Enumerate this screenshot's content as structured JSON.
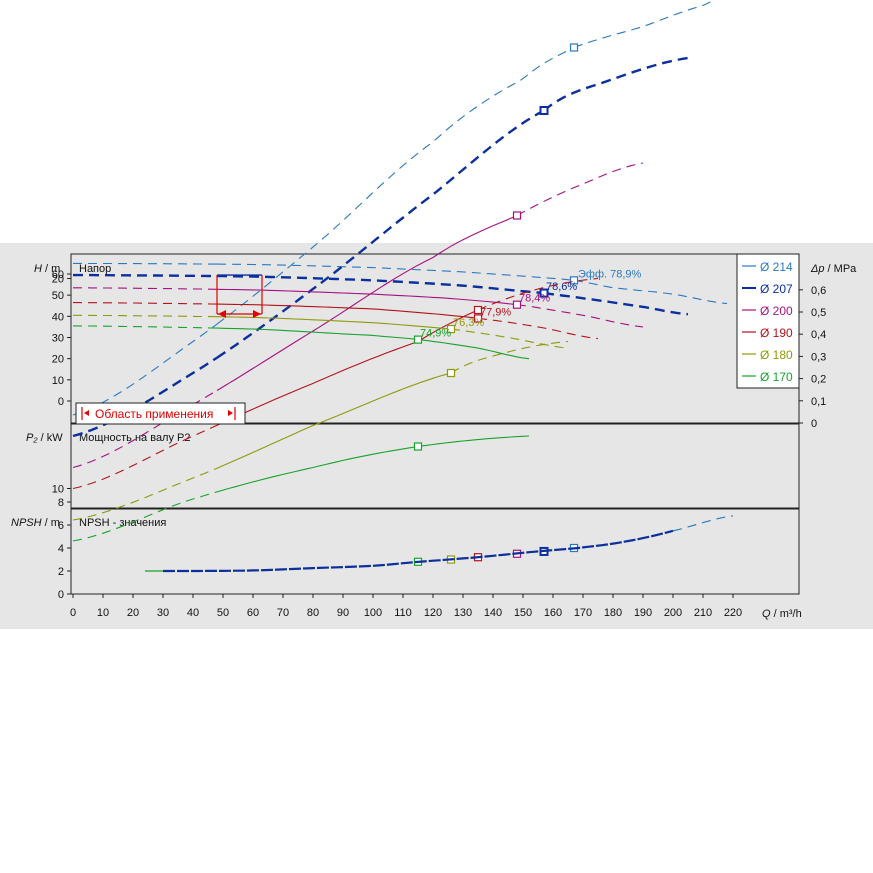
{
  "chart_data": {
    "type": "line",
    "x_axis": {
      "label_var": "Q",
      "label_unit": "m³/h",
      "ticks": [
        0,
        10,
        20,
        30,
        40,
        50,
        60,
        70,
        80,
        90,
        100,
        110,
        120,
        130,
        140,
        150,
        160,
        170,
        180,
        190,
        200,
        210,
        220
      ],
      "range": [
        0,
        242
      ]
    },
    "colors": {
      "background": "#ffffff",
      "panel": "#e6e6e6",
      "grid": "#ffffff",
      "d214": "#2b79c2",
      "d207": "#0b2f9e",
      "d200": "#a8107f",
      "d190": "#b5121b",
      "d180": "#8f9a0a",
      "d170": "#17a32c",
      "range": "#e00000"
    },
    "panels": {
      "head": {
        "title": "Напор",
        "ylabel_var": "H",
        "ylabel_unit": "m",
        "yticks": [
          0,
          10,
          20,
          30,
          40,
          50,
          60
        ],
        "ylim": [
          0,
          66
        ],
        "right_label_var": "Δp",
        "right_label_unit": "MPa",
        "right_ticks": [
          "0",
          "0,1",
          "0,2",
          "0,3",
          "0,4",
          "0,5",
          "0,6"
        ],
        "application_range_label": "Область применения",
        "application_range": [
          48,
          63
        ],
        "application_range_head": 59.5
      },
      "power": {
        "title": "Мощность на валу P2",
        "ylabel_var": "P₂",
        "ylabel_unit": "kW",
        "yticks": [
          10,
          20
        ],
        "ylim": [
          0,
          33
        ]
      },
      "npsh": {
        "title": "NPSH - значения",
        "ylabel_var": "NPSH",
        "ylabel_unit": "m",
        "yticks": [
          0,
          2,
          4,
          6,
          8
        ],
        "ylim": [
          0,
          9
        ]
      }
    },
    "series": [
      {
        "name": "Ø 214",
        "key": "d214",
        "head": {
          "x": [
            0,
            60,
            100,
            130,
            150,
            167,
            180,
            200,
            218
          ],
          "y": [
            65,
            64.5,
            63,
            61,
            59,
            57,
            53.5,
            50.5,
            46
          ]
        },
        "power": {
          "x": [
            0,
            40,
            80,
            120,
            150,
            167,
            190,
            210,
            220
          ],
          "y": [
            13.5,
            17,
            21.5,
            26.5,
            29.5,
            31,
            32,
            33,
            33.5
          ]
        },
        "bep": {
          "x": 167,
          "head": 57,
          "power": 31,
          "npsh": 4,
          "label": "Эфф.   78,9%"
        }
      },
      {
        "name": "Ø 207",
        "key": "d207",
        "head": {
          "x": [
            0,
            60,
            100,
            130,
            157,
            170,
            190,
            205
          ],
          "y": [
            59.5,
            58.8,
            57,
            54.5,
            51,
            48.5,
            44.5,
            41
          ]
        },
        "power": {
          "x": [
            0,
            40,
            80,
            120,
            157,
            180,
            205
          ],
          "y": [
            12.5,
            15.5,
            19.5,
            24,
            28,
            29.5,
            30.5
          ]
        },
        "bep": {
          "x": 157,
          "head": 51,
          "power": 28,
          "npsh": 3.7,
          "label": "78,6%"
        }
      },
      {
        "name": "Ø 200",
        "key": "d200",
        "head": {
          "x": [
            0,
            60,
            100,
            125,
            148,
            170,
            190
          ],
          "y": [
            53.5,
            52.5,
            50.5,
            48.5,
            45.5,
            40.5,
            35
          ]
        },
        "power": {
          "x": [
            0,
            40,
            80,
            120,
            148,
            170,
            190
          ],
          "y": [
            11,
            14,
            17.5,
            21,
            23,
            24.5,
            25.5
          ]
        },
        "bep": {
          "x": 148,
          "head": 45.5,
          "power": 23,
          "npsh": 3.5,
          "label": "78,4%"
        }
      },
      {
        "name": "Ø 190",
        "key": "d190",
        "head": {
          "x": [
            0,
            60,
            100,
            122,
            135,
            155,
            175
          ],
          "y": [
            46.5,
            45.5,
            43.5,
            41,
            39,
            35,
            29.5
          ]
        },
        "power": {
          "x": [
            0,
            40,
            80,
            115,
            135,
            155,
            175
          ],
          "y": [
            10,
            12.5,
            15,
            17,
            18.5,
            19.5,
            20
          ]
        },
        "bep": {
          "x": 135,
          "head": 39,
          "power": 18.5,
          "npsh": 3.2,
          "label": "77,9%"
        }
      },
      {
        "name": "Ø 180",
        "key": "d180",
        "head": {
          "x": [
            0,
            60,
            100,
            126,
            145,
            165
          ],
          "y": [
            40.5,
            39.5,
            37,
            34,
            30,
            25
          ]
        },
        "power": {
          "x": [
            0,
            40,
            80,
            126,
            145,
            165
          ],
          "y": [
            8.5,
            10.5,
            13,
            15.5,
            16.5,
            17
          ]
        },
        "bep": {
          "x": 126,
          "head": 34,
          "power": 15.5,
          "npsh": 3,
          "label": "76,3%"
        }
      },
      {
        "name": "Ø 170",
        "key": "d170",
        "head": {
          "x": [
            0,
            60,
            100,
            115,
            135,
            152
          ],
          "y": [
            35.5,
            34,
            31,
            29,
            25,
            20
          ]
        },
        "power": {
          "x": [
            0,
            40,
            80,
            115,
            152
          ],
          "y": [
            7.5,
            9.5,
            11,
            12,
            12.5
          ]
        },
        "bep": {
          "x": 115,
          "head": 29,
          "power": 12,
          "npsh": 2.8,
          "label": "74,9%"
        }
      }
    ],
    "npsh_curve": {
      "x": [
        24,
        40,
        60,
        80,
        100,
        115,
        135,
        155,
        170,
        185,
        200,
        220
      ],
      "y": [
        2,
        2,
        2.05,
        2.25,
        2.45,
        2.8,
        3.2,
        3.7,
        4.05,
        4.6,
        5.5,
        6.8
      ]
    }
  }
}
